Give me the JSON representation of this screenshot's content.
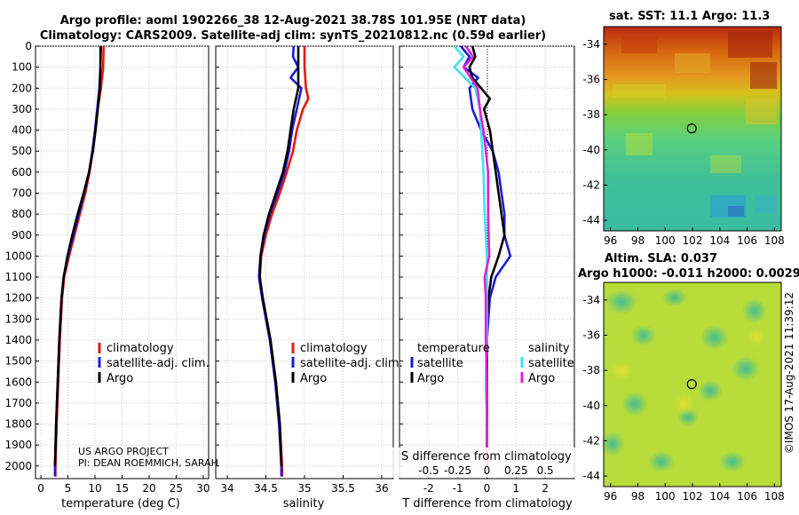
{
  "header": {
    "title_line1": "Argo profile: aoml 1902266_38 12-Aug-2021 38.78S 101.95E (NRT data)",
    "title_line2": "Climatology: CARS2009. Satellite-adj clim: synTS_20210812.nc (0.59d earlier)"
  },
  "credits": {
    "line1": "US ARGO PROJECT",
    "line2": "PI: DEAN ROEMMICH, SARAH",
    "side_stamp": "©IMOS 17-Aug-2021 11:39:12"
  },
  "colors": {
    "climatology": "#e8170a",
    "satellite": "#1c1cd6",
    "argo": "#000000",
    "sal_satellite": "#3fe3f0",
    "sal_argo": "#e020d8"
  },
  "chart_data": [
    {
      "type": "line",
      "id": "temperature",
      "xlabel": "temperature (deg C)",
      "ylabel": "",
      "xlim": [
        -1,
        31
      ],
      "ylim": [
        2060,
        0
      ],
      "xticks": [
        0,
        5,
        10,
        15,
        20,
        25,
        30
      ],
      "yticks": [
        0,
        100,
        200,
        300,
        400,
        500,
        600,
        700,
        800,
        900,
        1000,
        1100,
        1200,
        1300,
        1400,
        1500,
        1600,
        1700,
        1800,
        1900,
        2000
      ],
      "legend": {
        "placement": "bottom-right",
        "entries": [
          "climatology",
          "satellite-adj. clim.",
          "Argo"
        ]
      },
      "series": [
        {
          "name": "climatology",
          "color": "#e8170a",
          "depth": [
            0,
            100,
            200,
            300,
            400,
            500,
            600,
            700,
            800,
            900,
            1000,
            1100,
            1200,
            1400,
            1600,
            1800,
            2000,
            2050
          ],
          "values": [
            11.6,
            11.5,
            11.1,
            10.5,
            10.1,
            9.6,
            9.0,
            8.2,
            7.2,
            6.2,
            5.2,
            4.3,
            3.9,
            3.5,
            3.2,
            2.9,
            2.7,
            2.7
          ]
        },
        {
          "name": "satellite-adj. clim.",
          "color": "#1c1cd6",
          "depth": [
            0,
            100,
            200,
            300,
            400,
            500,
            600,
            700,
            800,
            900,
            1000,
            1100,
            1200,
            1400,
            1600,
            1800,
            2000,
            2050
          ],
          "values": [
            11.0,
            11.0,
            10.8,
            10.4,
            10.0,
            9.5,
            8.9,
            8.0,
            7.0,
            6.0,
            5.0,
            4.2,
            3.8,
            3.4,
            3.1,
            2.8,
            2.6,
            2.6
          ]
        },
        {
          "name": "Argo",
          "color": "#000000",
          "depth": [
            0,
            100,
            200,
            300,
            400,
            500,
            600,
            700,
            800,
            900,
            1000,
            1100,
            1200,
            1400,
            1600,
            1800,
            2000
          ],
          "values": [
            11.1,
            11.0,
            10.9,
            10.5,
            10.1,
            9.6,
            8.9,
            7.9,
            6.8,
            5.8,
            4.9,
            4.2,
            3.8,
            3.4,
            3.1,
            2.8,
            2.6
          ]
        }
      ]
    },
    {
      "type": "line",
      "id": "salinity",
      "xlabel": "salinity",
      "ylabel": "",
      "xlim": [
        33.85,
        36.15
      ],
      "ylim": [
        2060,
        0
      ],
      "xticks": [
        34,
        34.5,
        35,
        35.5,
        36
      ],
      "xtick_labels": [
        "34",
        "34.5",
        "35",
        "35.5",
        "36"
      ],
      "legend": {
        "placement": "bottom-right",
        "entries": [
          "climatology",
          "satellite-adj. clim.",
          "Argo"
        ]
      },
      "series": [
        {
          "name": "climatology",
          "color": "#e8170a",
          "depth": [
            0,
            100,
            200,
            250,
            300,
            400,
            500,
            600,
            700,
            800,
            900,
            1000,
            1100,
            1200,
            1400,
            1600,
            1800,
            2000,
            2050
          ],
          "values": [
            35.0,
            35.0,
            35.02,
            35.05,
            34.98,
            34.9,
            34.85,
            34.77,
            34.68,
            34.58,
            34.5,
            34.44,
            34.42,
            34.46,
            34.56,
            34.63,
            34.68,
            34.71,
            34.71
          ]
        },
        {
          "name": "satellite-adj. clim.",
          "color": "#1c1cd6",
          "depth": [
            0,
            50,
            100,
            150,
            200,
            300,
            400,
            500,
            600,
            700,
            800,
            900,
            1000,
            1100,
            1200,
            1400,
            1600,
            1800,
            2000,
            2050
          ],
          "values": [
            34.86,
            34.85,
            34.92,
            34.82,
            34.96,
            34.9,
            34.84,
            34.8,
            34.74,
            34.65,
            34.55,
            34.48,
            34.43,
            34.41,
            34.45,
            34.55,
            34.62,
            34.67,
            34.7,
            34.7
          ]
        },
        {
          "name": "Argo",
          "color": "#000000",
          "depth": [
            0,
            100,
            200,
            300,
            400,
            500,
            600,
            700,
            800,
            900,
            1000,
            1100,
            1200,
            1400,
            1600,
            1800,
            2000
          ],
          "values": [
            34.92,
            34.92,
            34.92,
            34.86,
            34.82,
            34.78,
            34.72,
            34.63,
            34.54,
            34.47,
            34.43,
            34.42,
            34.46,
            34.56,
            34.63,
            34.68,
            34.7
          ]
        }
      ]
    },
    {
      "type": "line",
      "id": "difference",
      "xlabel": "T difference from climatology",
      "xlabel_top": "S difference from climatology",
      "ylabel": "",
      "xlim": [
        -3,
        3
      ],
      "ylim": [
        2060,
        0
      ],
      "xticks": [
        -2,
        -1,
        0,
        1,
        2
      ],
      "top_ticks": [
        -0.5,
        -0.25,
        0,
        0.25,
        0.5
      ],
      "legend_temperature": {
        "placement": "bottom-left",
        "title": "temperature",
        "entries": [
          "satellite",
          "Argo"
        ]
      },
      "legend_salinity": {
        "placement": "bottom-right",
        "title": "salinity",
        "entries": [
          "satellite",
          "Argo"
        ]
      },
      "series": [
        {
          "name": "temperature satellite",
          "color": "#1c1cd6",
          "depth": [
            0,
            50,
            100,
            150,
            200,
            300,
            400,
            500,
            600,
            700,
            800,
            900,
            1000,
            1100,
            1200,
            1300,
            1400,
            1600,
            1800,
            2000
          ],
          "values": [
            -0.9,
            -0.6,
            -0.8,
            -0.3,
            -0.6,
            -0.5,
            -0.2,
            0.2,
            0.4,
            0.5,
            0.6,
            0.6,
            0.8,
            0.3,
            0.1,
            0.05,
            0.0,
            0.0,
            0.0,
            0.0
          ]
        },
        {
          "name": "temperature Argo",
          "color": "#000000",
          "depth": [
            0,
            50,
            100,
            150,
            200,
            250,
            300,
            400,
            500,
            600,
            700,
            800,
            900,
            1000,
            1100,
            1200,
            1300,
            1400,
            1600,
            1800,
            2000
          ],
          "values": [
            -0.5,
            -0.4,
            -0.6,
            -0.5,
            -0.2,
            0.1,
            -0.1,
            0.1,
            0.2,
            0.3,
            0.4,
            0.5,
            0.6,
            0.4,
            0.15,
            0.05,
            0.0,
            0.0,
            0.0,
            0.0,
            0.0
          ]
        },
        {
          "name": "salinity satellite",
          "color": "#3fe3f0",
          "depth": [
            0,
            50,
            100,
            200,
            300,
            400,
            600,
            800,
            1000,
            1200,
            1400,
            1600,
            1800,
            2000
          ],
          "values": [
            -0.28,
            -0.2,
            -0.28,
            -0.1,
            -0.06,
            -0.05,
            -0.03,
            -0.02,
            0.0,
            0.0,
            0.0,
            -0.01,
            0.0,
            0.0
          ]
        },
        {
          "name": "salinity Argo",
          "color": "#e020d8",
          "depth": [
            0,
            50,
            100,
            200,
            300,
            400,
            600,
            800,
            1000,
            1100,
            1200,
            1400,
            1600,
            1800,
            2000
          ],
          "values": [
            -0.18,
            -0.12,
            -0.2,
            -0.08,
            -0.06,
            -0.03,
            0.01,
            0.01,
            0.02,
            -0.02,
            -0.01,
            -0.01,
            0.0,
            0.0,
            0.0
          ]
        }
      ]
    },
    {
      "type": "heatmap",
      "id": "sst_map",
      "title": "sat. SST: 11.1 Argo: 11.3",
      "xticks": [
        96,
        98,
        100,
        102,
        104,
        106,
        108
      ],
      "yticks": [
        -34,
        -36,
        -38,
        -40,
        -42,
        -44
      ],
      "xlim": [
        95.5,
        108.5
      ],
      "ylim": [
        -44.6,
        -33.0
      ],
      "marker": {
        "lon": 101.95,
        "lat": -38.78
      }
    },
    {
      "type": "heatmap",
      "id": "sla_map",
      "title_line1": "Altim. SLA: 0.037",
      "title_line2": "Argo h1000: -0.011 h2000: 0.0029",
      "xticks": [
        96,
        98,
        100,
        102,
        104,
        106,
        108
      ],
      "yticks": [
        -34,
        -36,
        -38,
        -40,
        -42,
        -44
      ],
      "xlim": [
        95.5,
        108.5
      ],
      "ylim": [
        -44.6,
        -33.0
      ],
      "marker": {
        "lon": 101.95,
        "lat": -38.78
      }
    }
  ]
}
